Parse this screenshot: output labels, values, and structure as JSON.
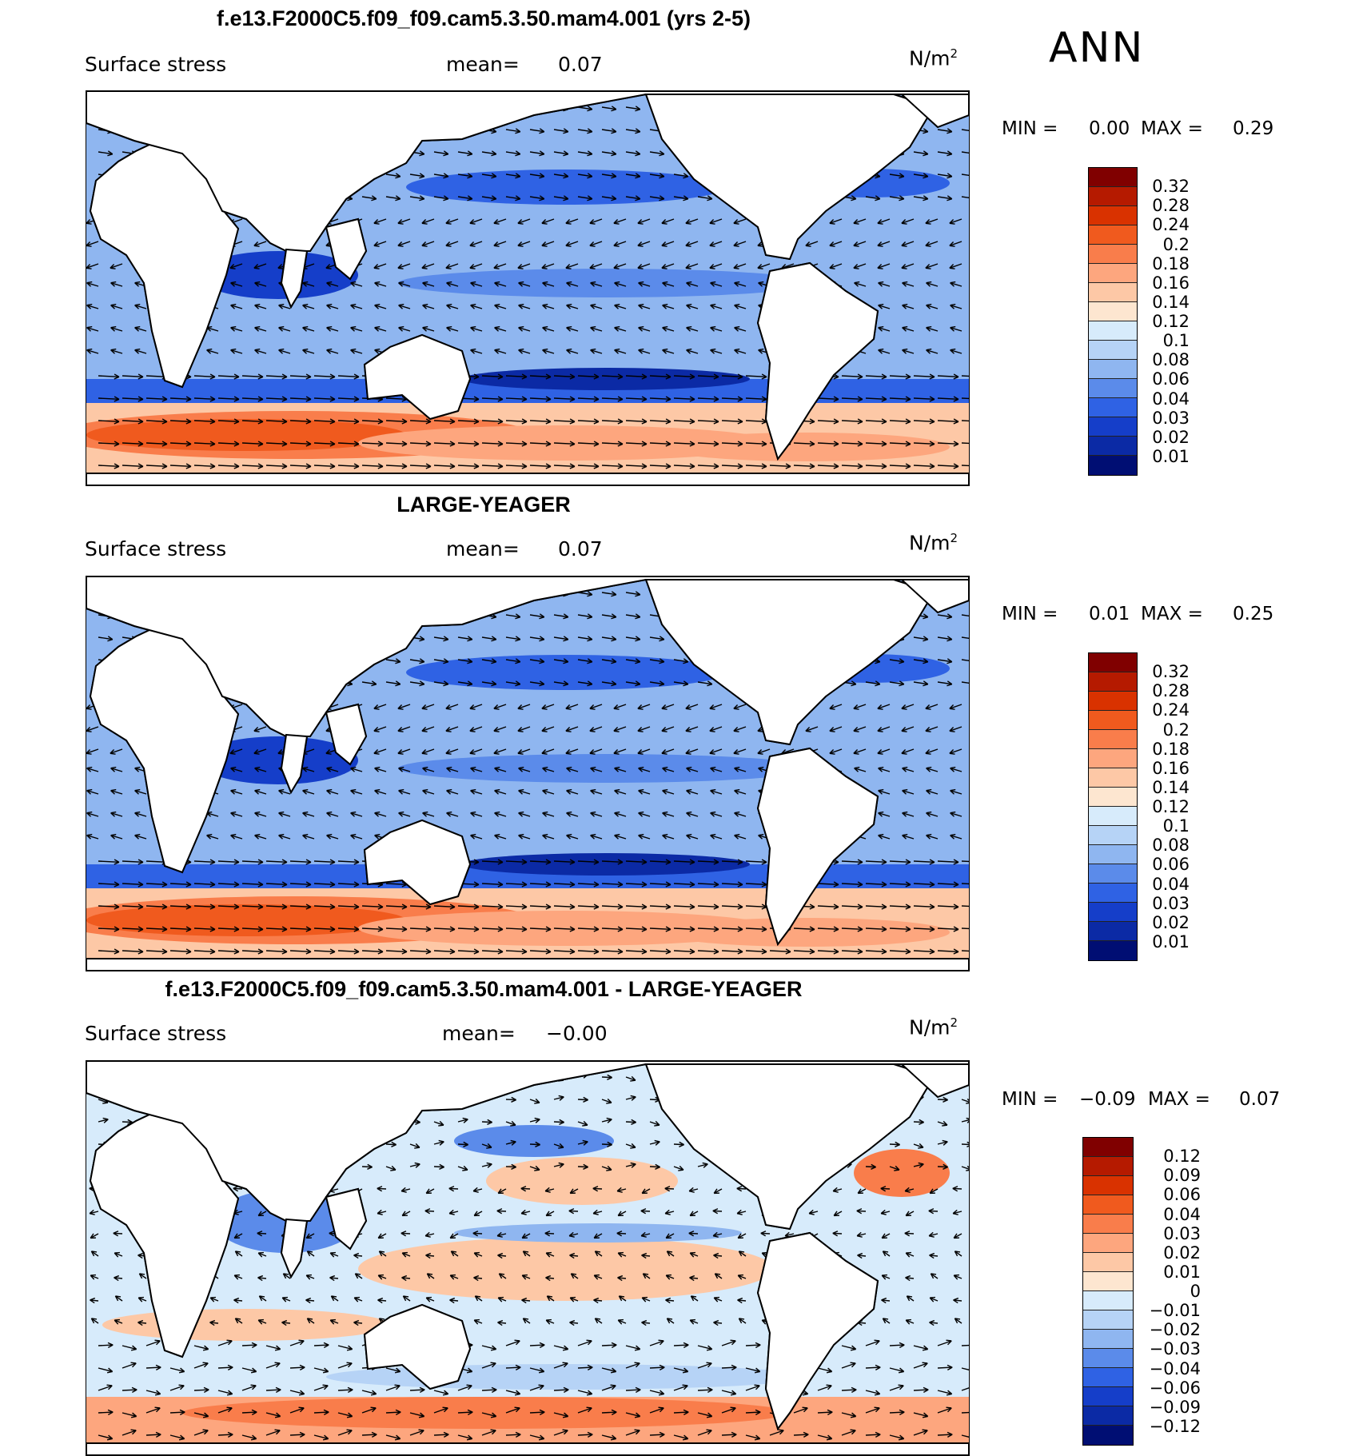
{
  "season": "ANN",
  "units_base": "N/m",
  "units_exp": "2",
  "var_label": "Surface stress",
  "mean_label": "mean=",
  "min_label": "MIN =",
  "max_label": "MAX =",
  "panels": [
    {
      "title": "f.e13.F2000C5.f09_f09.cam5.3.50.mam4.001 (yrs 2-5)",
      "mean": "0.07",
      "min": "0.00",
      "max": "0.29",
      "colorbar_labels": [
        "0.32",
        "0.28",
        "0.24",
        "0.2",
        "0.18",
        "0.16",
        "0.14",
        "0.12",
        "0.1",
        "0.08",
        "0.06",
        "0.04",
        "0.03",
        "0.02",
        "0.01"
      ],
      "colors": [
        "#800000",
        "#b51a00",
        "#d93200",
        "#f05a1e",
        "#f97d4b",
        "#fda67e",
        "#fdc8a6",
        "#fde6d0",
        "#d7ebfb",
        "#b6d3f6",
        "#8fb6f0",
        "#5b8bea",
        "#2f62e4",
        "#153ec9",
        "#0b2aa5",
        "#000e73"
      ]
    },
    {
      "title": "LARGE-YEAGER",
      "mean": "0.07",
      "min": "0.01",
      "max": "0.25",
      "colorbar_labels": [
        "0.32",
        "0.28",
        "0.24",
        "0.2",
        "0.18",
        "0.16",
        "0.14",
        "0.12",
        "0.1",
        "0.08",
        "0.06",
        "0.04",
        "0.03",
        "0.02",
        "0.01"
      ],
      "colors": [
        "#800000",
        "#b51a00",
        "#d93200",
        "#f05a1e",
        "#f97d4b",
        "#fda67e",
        "#fdc8a6",
        "#fde6d0",
        "#d7ebfb",
        "#b6d3f6",
        "#8fb6f0",
        "#5b8bea",
        "#2f62e4",
        "#153ec9",
        "#0b2aa5",
        "#000e73"
      ]
    },
    {
      "title": "f.e13.F2000C5.f09_f09.cam5.3.50.mam4.001 - LARGE-YEAGER",
      "mean": "−0.00",
      "min": "−0.09",
      "max": "0.07",
      "colorbar_labels": [
        "0.12",
        "0.09",
        "0.06",
        "0.04",
        "0.03",
        "0.02",
        "0.01",
        "0",
        "−0.01",
        "−0.02",
        "−0.03",
        "−0.04",
        "−0.06",
        "−0.09",
        "−0.12"
      ],
      "colors": [
        "#800000",
        "#b51a00",
        "#d93200",
        "#f05a1e",
        "#f97d4b",
        "#fda67e",
        "#fdc8a6",
        "#fde6d0",
        "#d7ebfb",
        "#b6d3f6",
        "#8fb6f0",
        "#5b8bea",
        "#2f62e4",
        "#153ec9",
        "#0b2aa5",
        "#000e73"
      ]
    }
  ]
}
